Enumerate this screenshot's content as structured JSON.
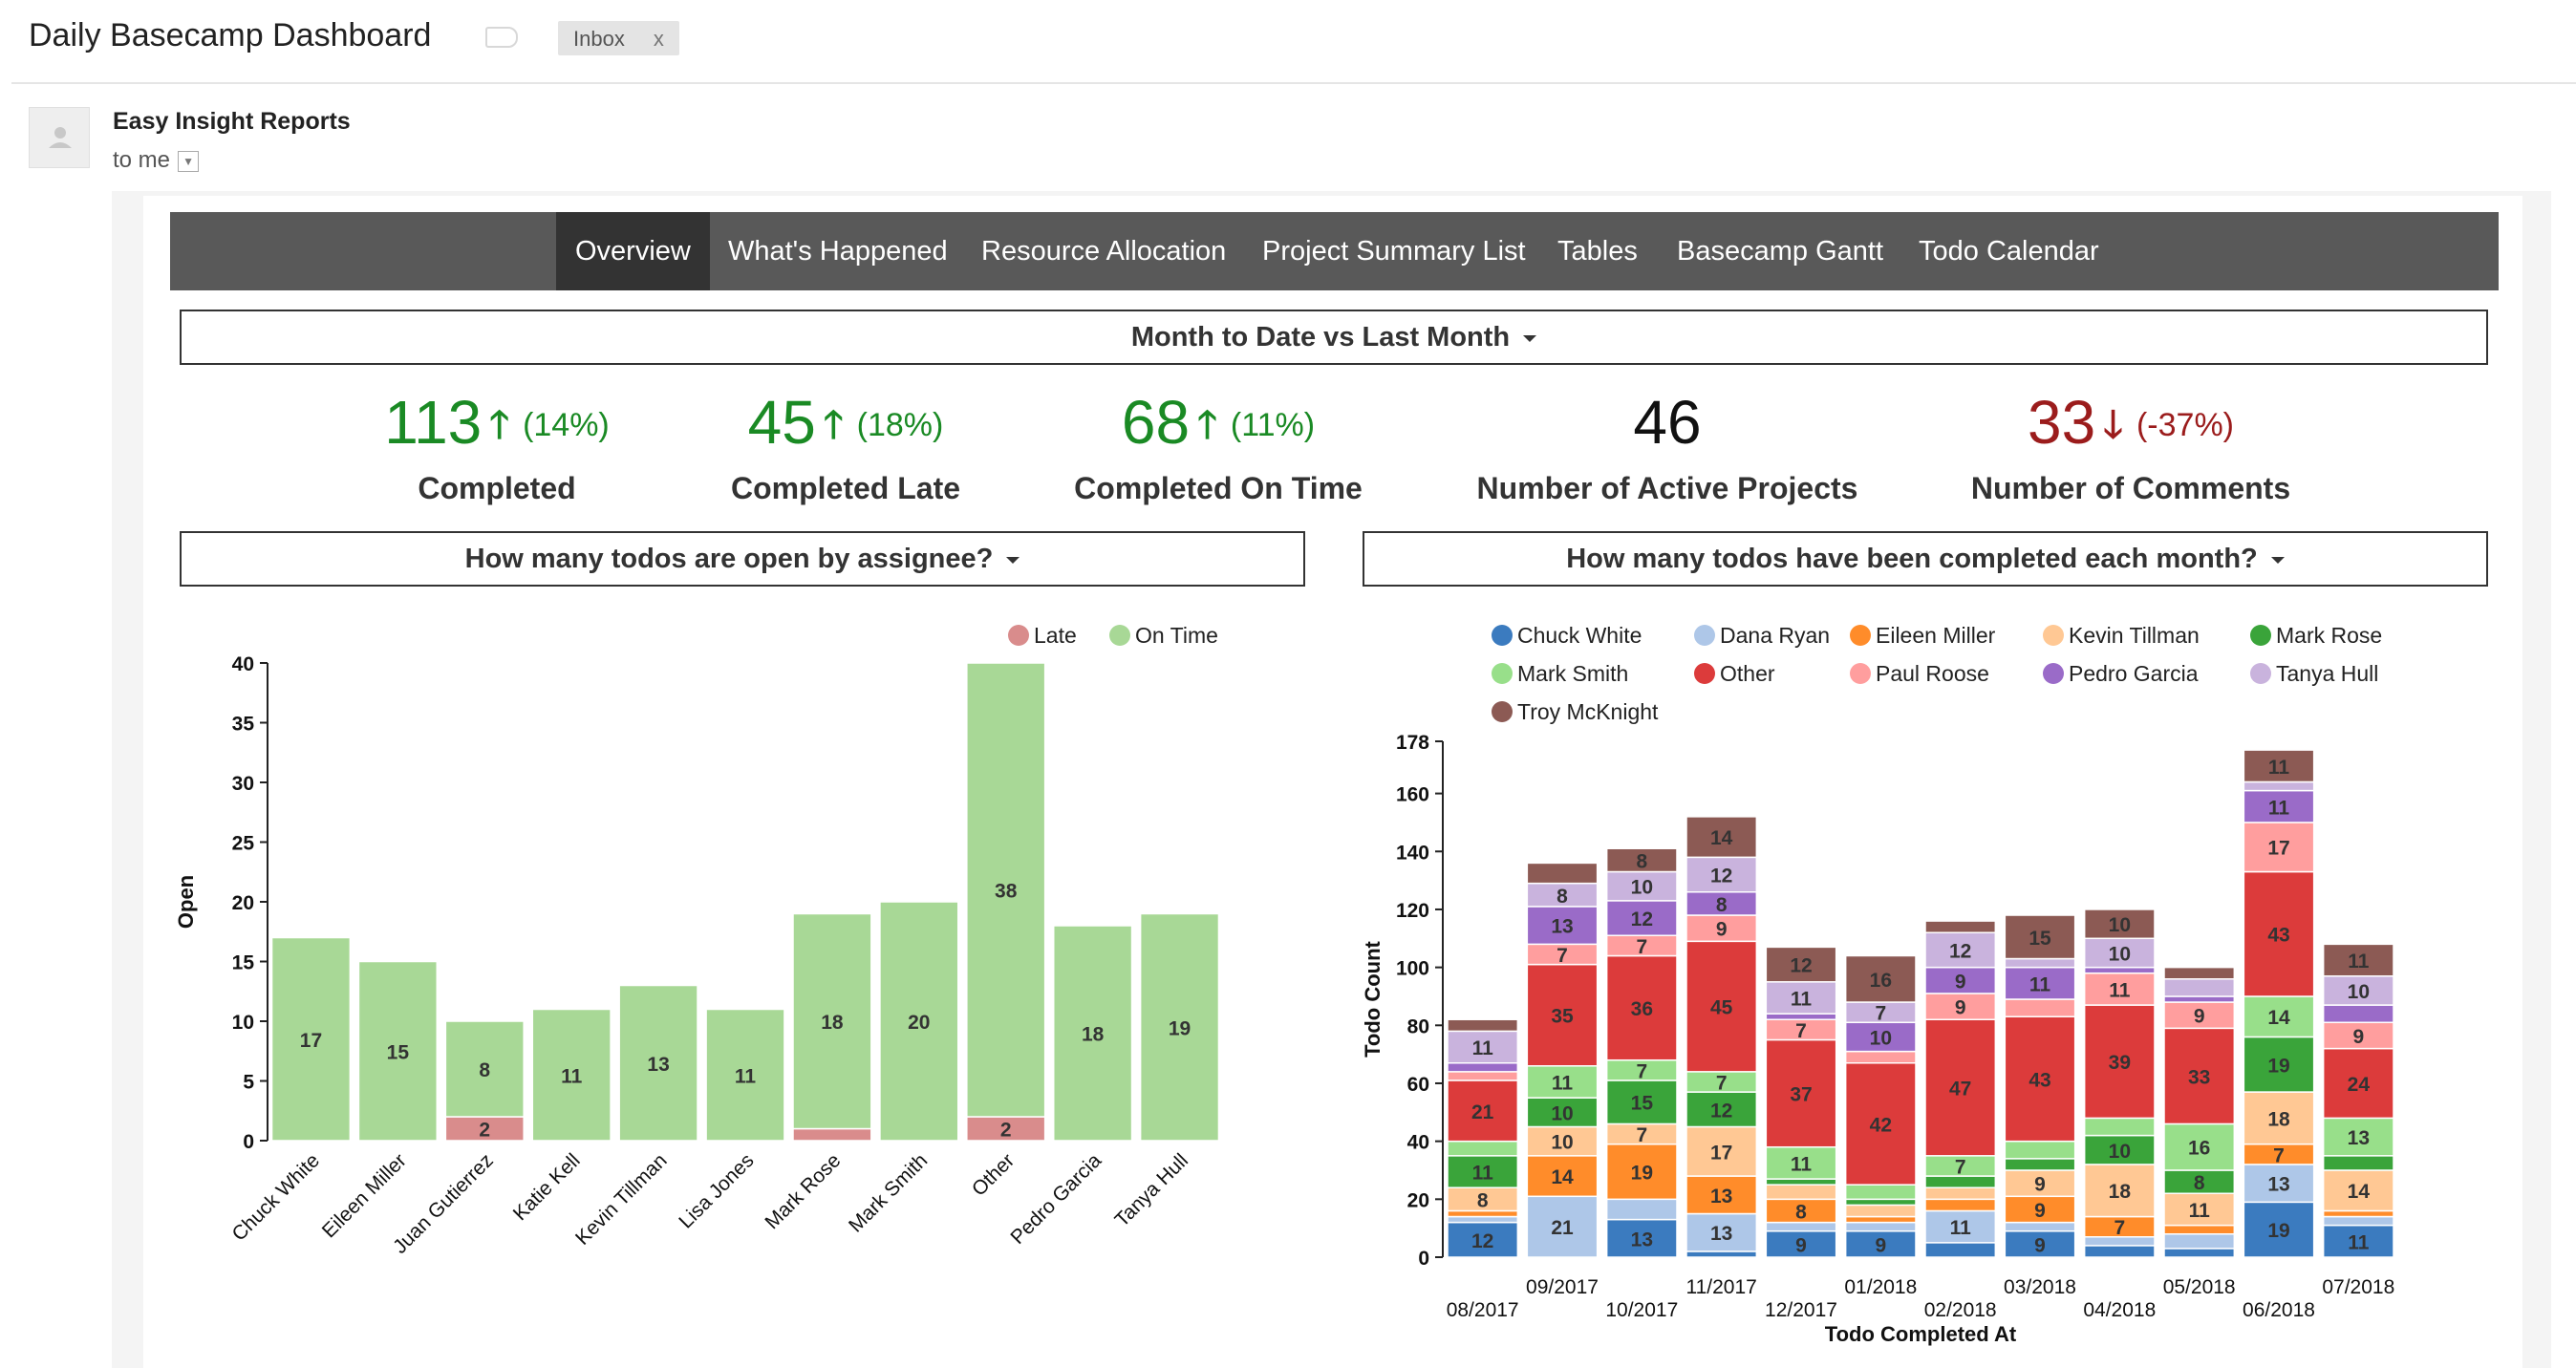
{
  "email": {
    "subject": "Daily Basecamp Dashboard",
    "label_chip": "Inbox",
    "label_chip_close": "x",
    "sender": "Easy Insight Reports",
    "recipient": "to me"
  },
  "report": {
    "tabs": [
      {
        "label": "Overview",
        "active": true
      },
      {
        "label": "What's Happened",
        "active": false
      },
      {
        "label": "Resource Allocation",
        "active": false
      },
      {
        "label": "Project Summary List",
        "active": false
      },
      {
        "label": "Tables",
        "active": false
      },
      {
        "label": "Basecamp Gantt",
        "active": false
      },
      {
        "label": "Todo Calendar",
        "active": false
      }
    ],
    "period_selector": "Month to Date vs Last Month",
    "kpis": [
      {
        "value": "113",
        "pct": "(14%)",
        "trend": "up",
        "label": "Completed"
      },
      {
        "value": "45",
        "pct": "(18%)",
        "trend": "up",
        "label": "Completed Late"
      },
      {
        "value": "68",
        "pct": "(11%)",
        "trend": "up",
        "label": "Completed On Time"
      },
      {
        "value": "46",
        "pct": "",
        "trend": "none",
        "label": "Number of Active Projects"
      },
      {
        "value": "33",
        "pct": "(-37%)",
        "trend": "down",
        "label": "Number of Comments"
      }
    ],
    "left_selector": "How many todos are open by assignee?",
    "right_selector": "How many todos have been completed each month?",
    "colors": {
      "up": "#1a8a24",
      "down": "#9b1c1c",
      "neutral": "#111111",
      "tabbar": "#595959",
      "tab_active": "#333333"
    }
  },
  "chart_data": [
    {
      "type": "bar",
      "stacked": true,
      "ylabel": "Open",
      "ylim": [
        0,
        40
      ],
      "yticks": [
        0,
        5,
        10,
        15,
        20,
        25,
        30,
        35,
        40
      ],
      "legend_position": "top-right",
      "categories": [
        "Chuck White",
        "Eileen Miller",
        "Juan Gutierrez",
        "Katie Kell",
        "Kevin Tillman",
        "Lisa Jones",
        "Mark Rose",
        "Mark Smith",
        "Other",
        "Pedro Garcia",
        "Tanya Hull"
      ],
      "series": [
        {
          "name": "Late",
          "color": "#d98c8c",
          "values": [
            0,
            0,
            2,
            0,
            0,
            0,
            1,
            0,
            2,
            0,
            0
          ],
          "labels": [
            "",
            "",
            "2",
            "",
            "",
            "",
            "",
            "",
            "2",
            "",
            ""
          ]
        },
        {
          "name": "On Time",
          "color": "#a8d896",
          "values": [
            17,
            15,
            8,
            11,
            13,
            11,
            18,
            20,
            38,
            18,
            19
          ],
          "labels": [
            "17",
            "15",
            "8",
            "11",
            "13",
            "11",
            "18",
            "20",
            "38",
            "18",
            "19"
          ]
        }
      ]
    },
    {
      "type": "bar",
      "stacked": true,
      "xlabel": "Todo Completed At",
      "ylabel": "Todo Count",
      "ylim": [
        0,
        178
      ],
      "yticks": [
        0,
        20,
        40,
        60,
        80,
        100,
        120,
        140,
        160,
        178
      ],
      "legend_position": "top",
      "categories": [
        "08/2017",
        "09/2017",
        "10/2017",
        "11/2017",
        "12/2017",
        "01/2018",
        "02/2018",
        "03/2018",
        "04/2018",
        "05/2018",
        "06/2018",
        "07/2018"
      ],
      "series": [
        {
          "name": "Chuck White",
          "color": "#3b7bbf",
          "values": [
            12,
            0,
            13,
            2,
            9,
            9,
            5,
            9,
            4,
            3,
            19,
            11
          ],
          "labels": [
            "12",
            "",
            "13",
            "",
            "9",
            "9",
            "",
            "9",
            "",
            "",
            "19",
            "11"
          ]
        },
        {
          "name": "Dana Ryan",
          "color": "#aec7e8",
          "values": [
            2,
            21,
            7,
            13,
            3,
            3,
            11,
            3,
            3,
            5,
            13,
            3
          ],
          "labels": [
            "",
            "21",
            "",
            "13",
            "",
            "",
            "11",
            "",
            "",
            "",
            "13",
            ""
          ]
        },
        {
          "name": "Eileen Miller",
          "color": "#ff8c2a",
          "values": [
            2,
            14,
            19,
            13,
            8,
            2,
            4,
            9,
            7,
            3,
            7,
            2
          ],
          "labels": [
            "",
            "14",
            "19",
            "13",
            "8",
            "",
            "",
            "9",
            "7",
            "",
            "7",
            ""
          ]
        },
        {
          "name": "Kevin Tillman",
          "color": "#ffc894",
          "values": [
            8,
            10,
            7,
            17,
            5,
            4,
            4,
            9,
            18,
            11,
            18,
            14
          ],
          "labels": [
            "8",
            "10",
            "7",
            "17",
            "",
            "",
            "",
            "9",
            "18",
            "11",
            "18",
            "14"
          ]
        },
        {
          "name": "Mark Rose",
          "color": "#3aa43a",
          "values": [
            11,
            10,
            15,
            12,
            2,
            2,
            4,
            4,
            10,
            8,
            19,
            5
          ],
          "labels": [
            "11",
            "10",
            "15",
            "12",
            "",
            "",
            "",
            "",
            "10",
            "8",
            "19",
            ""
          ]
        },
        {
          "name": "Mark Smith",
          "color": "#98df8a",
          "values": [
            5,
            11,
            7,
            7,
            11,
            5,
            7,
            6,
            6,
            16,
            14,
            13
          ],
          "labels": [
            "",
            "11",
            "7",
            "7",
            "11",
            "",
            "7",
            "",
            "",
            "16",
            "14",
            "13"
          ]
        },
        {
          "name": "Other",
          "color": "#dc3b3b",
          "values": [
            21,
            35,
            36,
            45,
            37,
            42,
            47,
            43,
            39,
            33,
            43,
            24
          ],
          "labels": [
            "21",
            "35",
            "36",
            "45",
            "37",
            "42",
            "47",
            "43",
            "39",
            "33",
            "43",
            "24"
          ]
        },
        {
          "name": "Paul Roose",
          "color": "#ff9e9e",
          "values": [
            3,
            7,
            7,
            9,
            7,
            4,
            9,
            6,
            11,
            9,
            17,
            9
          ],
          "labels": [
            "",
            "7",
            "7",
            "9",
            "7",
            "",
            "9",
            "",
            "11",
            "9",
            "17",
            "9"
          ]
        },
        {
          "name": "Pedro Garcia",
          "color": "#9a6bc8",
          "values": [
            3,
            13,
            12,
            8,
            2,
            10,
            9,
            11,
            2,
            2,
            11,
            6
          ],
          "labels": [
            "",
            "13",
            "12",
            "8",
            "",
            "10",
            "9",
            "11",
            "",
            "",
            "11",
            ""
          ]
        },
        {
          "name": "Tanya Hull",
          "color": "#c9b3dd",
          "values": [
            11,
            8,
            10,
            12,
            11,
            7,
            12,
            3,
            10,
            6,
            3,
            10
          ],
          "labels": [
            "11",
            "8",
            "10",
            "12",
            "11",
            "7",
            "12",
            "",
            "10",
            "",
            "",
            "10"
          ]
        },
        {
          "name": "Troy McKnight",
          "color": "#8c5a54",
          "values": [
            4,
            7,
            8,
            14,
            12,
            16,
            4,
            15,
            10,
            4,
            11,
            11
          ],
          "labels": [
            "",
            "",
            "8",
            "14",
            "12",
            "16",
            "",
            "15",
            "10",
            "",
            "11",
            "11"
          ]
        }
      ]
    }
  ]
}
